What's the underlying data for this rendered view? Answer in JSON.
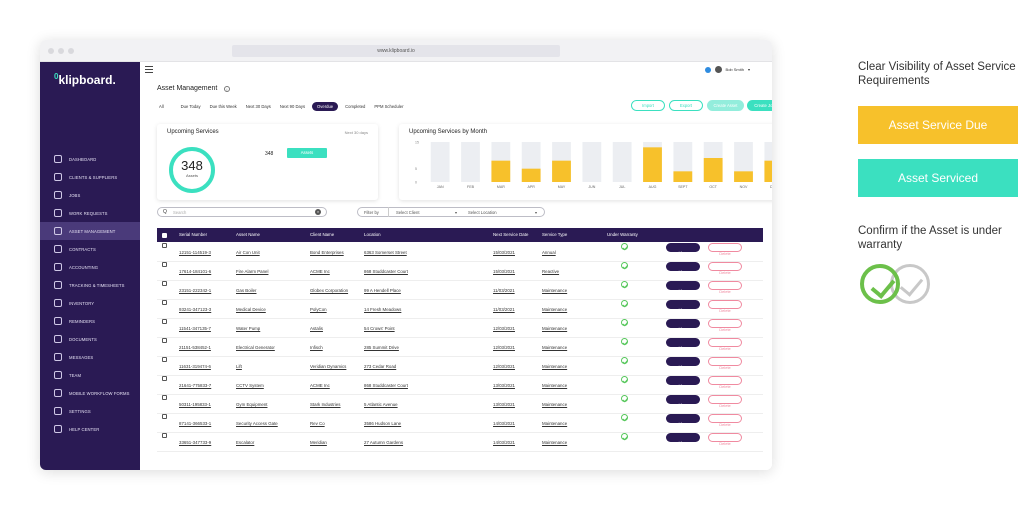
{
  "browser": {
    "url": "www.klipboard.io"
  },
  "sidebar": {
    "logo": "klipboard.",
    "logo_mark": "0",
    "items": [
      {
        "label": "DASHBOARD",
        "icon": "dashboard-icon"
      },
      {
        "label": "CLIENTS & SUPPLIERS",
        "icon": "users-icon"
      },
      {
        "label": "JOBS",
        "icon": "jobs-icon"
      },
      {
        "label": "WORK REQUESTS",
        "icon": "work-requests-icon"
      },
      {
        "label": "ASSET MANAGEMENT",
        "icon": "wrench-icon",
        "active": true
      },
      {
        "label": "CONTRACTS",
        "icon": "contracts-icon"
      },
      {
        "label": "ACCOUNTING",
        "icon": "accounting-icon"
      },
      {
        "label": "TRACKING & TIMESHEETS",
        "icon": "tracking-icon"
      },
      {
        "label": "INVENTORY",
        "icon": "inventory-icon"
      },
      {
        "label": "REMINDERS",
        "icon": "bell-icon"
      },
      {
        "label": "DOCUMENTS",
        "icon": "document-icon"
      },
      {
        "label": "MESSAGES",
        "icon": "message-icon"
      },
      {
        "label": "TEAM",
        "icon": "team-icon"
      },
      {
        "label": "MOBILE WORKFLOW FORMS",
        "icon": "pen-icon"
      },
      {
        "label": "SETTINGS",
        "icon": "gear-icon"
      },
      {
        "label": "HELP CENTER",
        "icon": "help-icon"
      }
    ]
  },
  "header": {
    "user_name": "Bob Smith",
    "notification_color": "#2f8ce0"
  },
  "page": {
    "title": "Asset Management",
    "filters": [
      "All",
      "Due Today",
      "Due this Week",
      "Next 30 Days",
      "Next 90 Days",
      "Overdue",
      "Completed",
      "PPM Scheduler"
    ],
    "selected_filter": "Overdue",
    "actions": {
      "import": "Import",
      "export": "Export",
      "create_asset": "Create Asset",
      "create_job": "Create Job"
    }
  },
  "upcoming_services": {
    "title": "Upcoming Services",
    "range": "Next 30 days",
    "total": "348",
    "total_label": "Assets",
    "count": "348",
    "count_button": "Assets"
  },
  "chart_data": {
    "type": "bar",
    "title": "Upcoming Services by Month",
    "categories": [
      "JAN",
      "FEB",
      "MAR",
      "APR",
      "MAY",
      "JUN",
      "JUL",
      "AUG",
      "SEPT",
      "OCT",
      "NOV",
      "DEC"
    ],
    "series": [
      {
        "values": [
          0,
          0,
          8,
          5,
          8,
          0,
          0,
          13,
          4,
          9,
          4,
          8
        ]
      }
    ],
    "ylim": [
      0,
      15
    ],
    "yticks": [
      "15",
      "5",
      "0"
    ],
    "bar_color": "#f7c12b",
    "background_bar_color": "#eceef2"
  },
  "search": {
    "placeholder": "Search",
    "q": "Q"
  },
  "filter_bar": {
    "label": "Filter by",
    "client": "Select Client",
    "location": "Select Location"
  },
  "table": {
    "headers": [
      "Serial Number",
      "Asset Name",
      "Client Name",
      "Location",
      "Next Service Date",
      "Service Type",
      "Under Warranty"
    ],
    "view_label": "View",
    "delete_label": "Delete",
    "rows": [
      {
        "serial": "12151-114519-3",
        "asset": "Air Con Unit",
        "client": "Bond Enterprises",
        "location": "6363 Somerset Street",
        "date": "15/03/2021",
        "type": "Annual"
      },
      {
        "serial": "17614-184101-6",
        "asset": "Fire Alarm Panel",
        "client": "ACME Inc",
        "location": "868 Studdcaster Court",
        "date": "15/03/2021",
        "type": "Reactive"
      },
      {
        "serial": "23151-222342-1",
        "asset": "Gas Boiler",
        "client": "Globex Corporation",
        "location": "99 A Hendell Place",
        "date": "11/03/2021",
        "type": "Maintenance"
      },
      {
        "serial": "93241-347123-3",
        "asset": "Medical Device",
        "client": "PolyCon",
        "location": "14 Fresh Meadows",
        "date": "11/03/2021",
        "type": "Maintenance"
      },
      {
        "serial": "11541-347135-7",
        "asset": "Water Pump",
        "client": "Astalis",
        "location": "54 Crows' Point",
        "date": "12/03/2021",
        "type": "Maintenance"
      },
      {
        "serial": "21151-538452-1",
        "asset": "Electrical Generator",
        "client": "Infisch",
        "location": "285 Summit Drive",
        "date": "12/03/2021",
        "type": "Maintenance"
      },
      {
        "serial": "11631-319474-6",
        "asset": "Lift",
        "client": "Veridian Dynamics",
        "location": "273 Cedar Road",
        "date": "12/03/2021",
        "type": "Maintenance"
      },
      {
        "serial": "21641-775833-7",
        "asset": "CCTV System",
        "client": "ACME Inc",
        "location": "868 Studdcaster Court",
        "date": "13/03/2021",
        "type": "Maintenance"
      },
      {
        "serial": "50311-195833-1",
        "asset": "Gym Equipment",
        "client": "Stark Industries",
        "location": "5 Atlantic Avenue",
        "date": "13/03/2021",
        "type": "Maintenance"
      },
      {
        "serial": "87141-366533-1",
        "asset": "Security Access Gate",
        "client": "Rev Co",
        "location": "3586 Hudson Lane",
        "date": "14/03/2021",
        "type": "Maintenance"
      },
      {
        "serial": "33651-347733-9",
        "asset": "Escalator",
        "client": "Meridian",
        "location": "27 Autumn Gardens",
        "date": "14/03/2021",
        "type": "Maintenance"
      }
    ]
  },
  "legend_panel": {
    "heading": "Clear Visibility of Asset Service Requirements",
    "due_label": "Asset Service Due",
    "serviced_label": "Asset Serviced",
    "warranty_text": "Confirm if the Asset is under warranty",
    "due_color": "#f7c12b",
    "serviced_color": "#3be0c0",
    "warranty_color": "#6cc04a",
    "no_warranty_color": "#c8c8c8"
  }
}
